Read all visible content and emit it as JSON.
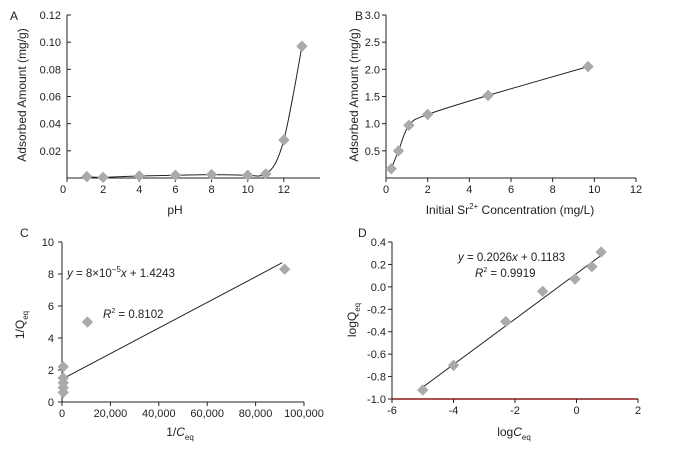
{
  "chart_data": [
    {
      "panel": "A",
      "type": "scatter",
      "xlabel": "pH",
      "ylabel": "Adsorbed Amount (mg/g)",
      "xlim": [
        0,
        14
      ],
      "ylim": [
        0,
        0.12
      ],
      "x_ticks": [
        0,
        2,
        4,
        6,
        8,
        10,
        12
      ],
      "y_ticks": [
        0.02,
        0.04,
        0.06,
        0.08,
        0.1,
        0.12
      ],
      "y_tick_labels": [
        "0.02",
        "0.04",
        "0.06",
        "0.08",
        "0.10",
        "0.12"
      ],
      "points": [
        {
          "x": 1.1,
          "y": 0.001
        },
        {
          "x": 2.0,
          "y": 0.0005
        },
        {
          "x": 4.0,
          "y": 0.0015
        },
        {
          "x": 6.0,
          "y": 0.002
        },
        {
          "x": 8.0,
          "y": 0.0025
        },
        {
          "x": 10.0,
          "y": 0.002
        },
        {
          "x": 11.0,
          "y": 0.003
        },
        {
          "x": 12.0,
          "y": 0.028
        },
        {
          "x": 13.0,
          "y": 0.097
        }
      ],
      "curve": [
        [
          1.1,
          0.001
        ],
        [
          2.0,
          0.0005
        ],
        [
          4.0,
          0.0015
        ],
        [
          6.0,
          0.002
        ],
        [
          8.0,
          0.0025
        ],
        [
          10.0,
          0.002
        ],
        [
          10.6,
          0.0015
        ],
        [
          11.0,
          0.003
        ],
        [
          11.5,
          0.01
        ],
        [
          12.0,
          0.028
        ],
        [
          12.5,
          0.06
        ],
        [
          13.0,
          0.097
        ]
      ]
    },
    {
      "panel": "B",
      "type": "scatter",
      "xlabel_pre": "Initial Sr",
      "xlabel_sup": "2+",
      "xlabel_post": " Concentration (mg/L)",
      "ylabel": "Adsorbed Amount (mg/g)",
      "xlim": [
        0,
        12
      ],
      "ylim": [
        0,
        3.0
      ],
      "x_ticks": [
        0,
        2,
        4,
        6,
        8,
        10,
        12
      ],
      "y_ticks": [
        0.5,
        1.0,
        1.5,
        2.0,
        2.5,
        3.0
      ],
      "y_tick_labels": [
        "0.5",
        "1.0",
        "1.5",
        "2.0",
        "2.5",
        "3.0"
      ],
      "points": [
        {
          "x": 0.25,
          "y": 0.17
        },
        {
          "x": 0.6,
          "y": 0.5
        },
        {
          "x": 1.1,
          "y": 0.97
        },
        {
          "x": 2.0,
          "y": 1.17
        },
        {
          "x": 4.9,
          "y": 1.52
        },
        {
          "x": 9.7,
          "y": 2.05
        }
      ],
      "curve": [
        [
          0.25,
          0.17
        ],
        [
          0.6,
          0.5
        ],
        [
          1.1,
          0.97
        ],
        [
          2.0,
          1.17
        ],
        [
          4.9,
          1.52
        ],
        [
          9.7,
          2.05
        ]
      ]
    },
    {
      "panel": "C",
      "type": "scatter",
      "xlabel_pre": "1/",
      "xlabel_it": "C",
      "xlabel_sub": "eq",
      "ylabel_pre": "1/Q",
      "ylabel_sub": "eq",
      "xlim": [
        0,
        100000
      ],
      "ylim": [
        0,
        10
      ],
      "x_ticks": [
        0,
        20000,
        40000,
        60000,
        80000,
        100000
      ],
      "x_tick_labels": [
        "0",
        "20,000",
        "40,000",
        "60,000",
        "80,000",
        "100,000"
      ],
      "y_ticks": [
        0,
        2,
        4,
        6,
        8,
        10
      ],
      "points": [
        {
          "x": 500,
          "y": 0.6
        },
        {
          "x": 500,
          "y": 0.9
        },
        {
          "x": 500,
          "y": 1.2
        },
        {
          "x": 500,
          "y": 1.5
        },
        {
          "x": 500,
          "y": 2.2
        },
        {
          "x": 10500,
          "y": 5.0
        },
        {
          "x": 92000,
          "y": 8.3
        }
      ],
      "fit": {
        "slope": 8e-05,
        "intercept": 1.4243,
        "x_range": [
          0,
          91000
        ]
      },
      "equation": {
        "y": "y",
        "eq": " = 8×10",
        "exp": "−5",
        "x": "x",
        "rest": " + 1.4243"
      },
      "r2": {
        "r": "R",
        "sup": "2",
        "val": " = 0.8102"
      }
    },
    {
      "panel": "D",
      "type": "scatter",
      "xlabel_pre": "log",
      "xlabel_it": "C",
      "xlabel_sub": "eq",
      "ylabel_pre": "logQ",
      "ylabel_sub": "eq",
      "xlim": [
        -6,
        2
      ],
      "ylim": [
        -1.0,
        0.4
      ],
      "x_ticks": [
        -6,
        -4,
        -2,
        0,
        2
      ],
      "x_tick_labels": [
        "-6",
        "-4",
        "-2",
        "0",
        "2"
      ],
      "y_ticks": [
        -1.0,
        -0.8,
        -0.6,
        -0.4,
        -0.2,
        0.0,
        0.2,
        0.4
      ],
      "y_tick_labels": [
        "-1.0",
        "-0.8",
        "-0.6",
        "-0.4",
        "-0.2",
        "0.0",
        "0.2",
        "0.4"
      ],
      "points": [
        {
          "x": -5.0,
          "y": -0.92
        },
        {
          "x": -4.0,
          "y": -0.7
        },
        {
          "x": -2.3,
          "y": -0.31
        },
        {
          "x": -1.1,
          "y": -0.04
        },
        {
          "x": -0.05,
          "y": 0.07
        },
        {
          "x": 0.5,
          "y": 0.18
        },
        {
          "x": 0.8,
          "y": 0.31
        }
      ],
      "fit": {
        "slope": 0.2026,
        "intercept": 0.1183,
        "x_range": [
          -5.0,
          0.85
        ]
      },
      "equation": {
        "y": "y",
        "eq": " = 0.2026",
        "x": "x",
        "rest": " + 0.1183"
      },
      "r2": {
        "r": "R",
        "sup": "2",
        "val": " = 0.9919"
      },
      "bottom_axis_color": "#8B1A1A"
    }
  ],
  "colors": {
    "marker": "#AAAAAA",
    "line": "#222222",
    "axis": "#222222"
  }
}
